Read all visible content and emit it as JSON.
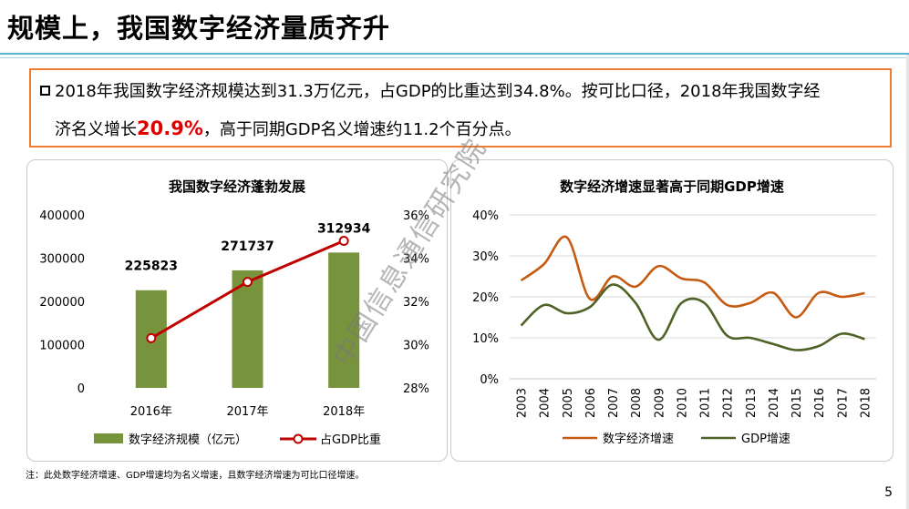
{
  "page": {
    "title": "规模上，我国数字经济量质齐升",
    "callout": {
      "line1": "2018年我国数字经济规模达到31.3万亿元，占GDP的比重达到34.8%。按可比口径，2018年我国数字经",
      "line2_pre": "济名义增长",
      "line2_highlight": "20.9%",
      "line2_post": "，高于同期GDP名义增速约11.2个百分点。"
    },
    "note": "注：此处数字经济增速、GDP增速均为名义增速，且数字经济增速为可比口径增速。",
    "page_number": "5",
    "watermark": "中国信息通信研究院"
  },
  "colors": {
    "bar": "#77933c",
    "line_red": "#c00000",
    "orange": "#c55a11",
    "green": "#4f6228",
    "accent": "#ed7d31"
  },
  "chart_data": [
    {
      "type": "bar",
      "title": "我国数字经济蓬勃发展",
      "categories": [
        "2016年",
        "2017年",
        "2018年"
      ],
      "series": [
        {
          "name": "数字经济规模（亿元）",
          "type": "bar",
          "axis": "left",
          "values": [
            225823,
            271737,
            312934
          ],
          "labels": [
            "225823",
            "271737",
            "312934"
          ]
        },
        {
          "name": "占GDP比重",
          "type": "line",
          "axis": "right",
          "values": [
            30.3,
            32.9,
            34.8
          ]
        }
      ],
      "y_left": {
        "min": 0,
        "max": 400000,
        "ticks": [
          "0",
          "100000",
          "200000",
          "300000",
          "400000"
        ]
      },
      "y_right": {
        "min": 28,
        "max": 36,
        "ticks": [
          "28%",
          "30%",
          "32%",
          "34%",
          "36%"
        ]
      },
      "legend": "bottom"
    },
    {
      "type": "line",
      "title": "数字经济增速显著高于同期GDP增速",
      "x": [
        "2003",
        "2004",
        "2005",
        "2006",
        "2007",
        "2008",
        "2009",
        "2010",
        "2011",
        "2012",
        "2013",
        "2014",
        "2015",
        "2016",
        "2017",
        "2018"
      ],
      "series": [
        {
          "name": "数字经济增速",
          "values": [
            24,
            28,
            34.5,
            19.5,
            25,
            22.5,
            27.5,
            24.5,
            23.5,
            18,
            18.5,
            21,
            15,
            21,
            20,
            20.9
          ]
        },
        {
          "name": "GDP增速",
          "values": [
            13,
            18,
            16,
            17.5,
            23,
            18.5,
            9.5,
            18.5,
            18.5,
            10.5,
            10,
            8.5,
            7,
            8,
            11,
            9.7
          ]
        }
      ],
      "y": {
        "min": 0,
        "max": 40,
        "ticks": [
          "0%",
          "10%",
          "20%",
          "30%",
          "40%"
        ]
      },
      "grid": true,
      "legend": "bottom"
    }
  ]
}
